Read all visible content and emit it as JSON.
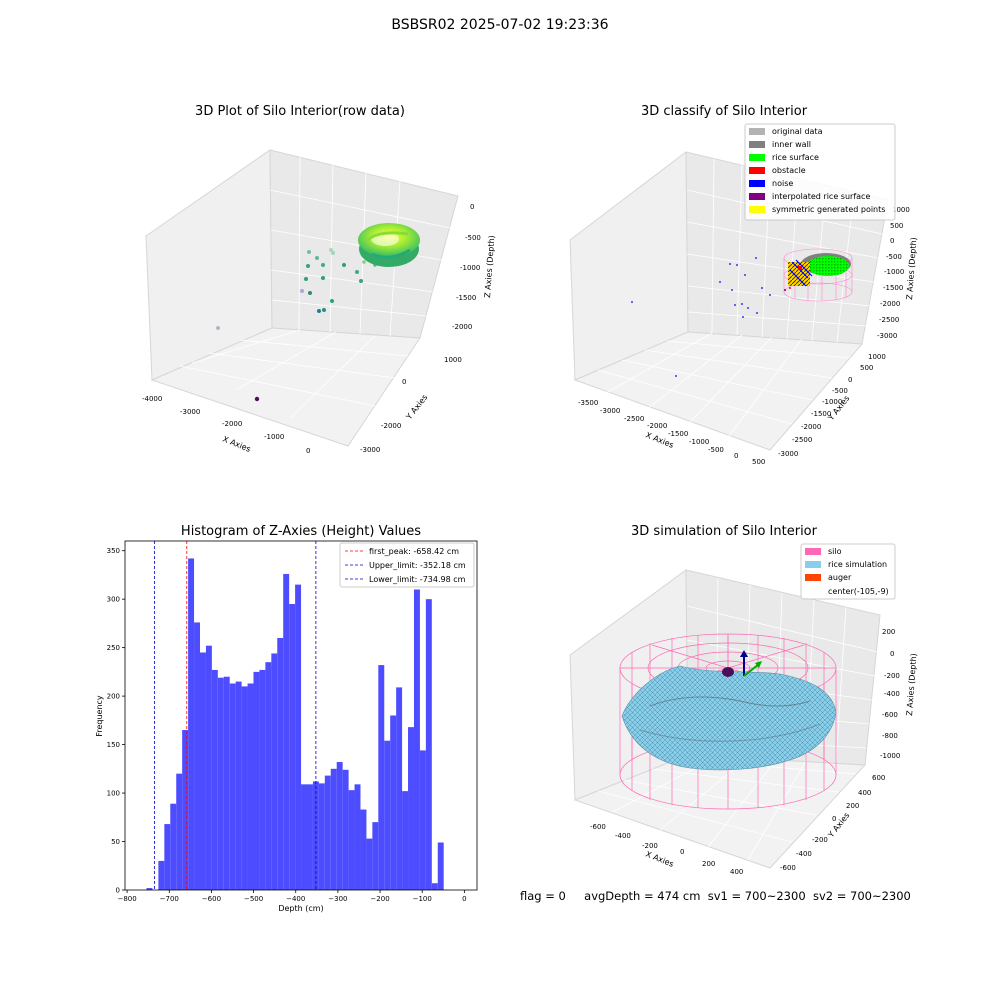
{
  "figure": {
    "suptitle": "BSBSR02 2025-07-02 19:23:36",
    "status": {
      "flag": "flag = 0",
      "avg_depth": "avgDepth = 474 cm",
      "sv1": "sv1 = 700~2300",
      "sv2": "sv2 = 700~2300"
    }
  },
  "colors": {
    "hist_bar": "#4d4dff",
    "first_peak_line": "#ff0000",
    "limit_lines": "#0000cc",
    "original_data": "#b3b3b3",
    "inner_wall": "#808080",
    "rice_surface": "#00ff00",
    "obstacle": "#ff0000",
    "noise": "#0000ff",
    "interpolated_rice_surface": "#800080",
    "symmetric_generated_points": "#ffff00",
    "silo": "#ff69b4",
    "rice_simulation": "#87ceeb",
    "auger": "#ff4500"
  },
  "chart_data": [
    {
      "type": "scatter",
      "subtype": "3d",
      "title": "3D Plot of Silo Interior(row data)",
      "xlabel": "X Axies",
      "ylabel": "Y Axies",
      "zlabel": "Z Axies (Depth)",
      "xticks": [
        "-4000",
        "-3000",
        "-2000",
        "-1000",
        "0"
      ],
      "yticks": [
        "-3000",
        "-2000",
        "0",
        "1000"
      ],
      "zticks": [
        "0",
        "-500",
        "-1000",
        "-1500",
        "-2000"
      ],
      "grid": true
    },
    {
      "type": "scatter",
      "subtype": "3d",
      "title": "3D classify of Silo Interior",
      "xlabel": "X Axies",
      "ylabel": "Y Axies",
      "zlabel": "Z Axies (Depth)",
      "xticks": [
        "-3500",
        "-3000",
        "-2500",
        "-2000",
        "-1500",
        "-1000",
        "-500",
        "0",
        "500"
      ],
      "yticks": [
        "-3000",
        "-2500",
        "-2000",
        "-1500",
        "-1000",
        "-500",
        "0",
        "500",
        "1000"
      ],
      "zticks": [
        "1000",
        "500",
        "0",
        "-500",
        "-1000",
        "-1500",
        "-2000",
        "-2500",
        "-3000"
      ],
      "zticks_note": "upper ticks partly hidden by legend",
      "legend": [
        "original data",
        "inner wall",
        "rice surface",
        "obstacle",
        "noise",
        "interpolated rice surface",
        "symmetric generated points"
      ],
      "legend_position": "top-right",
      "grid": true
    },
    {
      "type": "bar",
      "subtype": "histogram",
      "title": "Histogram of Z-Axies (Height) Values",
      "xlabel": "Depth (cm)",
      "ylabel": "Frequency",
      "xlim": [
        -805,
        30
      ],
      "ylim": [
        0,
        360
      ],
      "xticks": [
        -800,
        -700,
        -600,
        -500,
        -400,
        -300,
        -200,
        -100,
        0
      ],
      "yticks": [
        0,
        50,
        100,
        150,
        200,
        250,
        300,
        350
      ],
      "bin_width": 14.1,
      "bin_start": -754,
      "frequencies": [
        2,
        0,
        30,
        68,
        89,
        120,
        165,
        342,
        276,
        245,
        252,
        227,
        219,
        220,
        213,
        215,
        210,
        213,
        225,
        227,
        235,
        244,
        260,
        326,
        295,
        315,
        109,
        109,
        112,
        110,
        118,
        125,
        132,
        124,
        103,
        109,
        83,
        53,
        70,
        232,
        154,
        180,
        209,
        102,
        168,
        310,
        144,
        300,
        7,
        49
      ],
      "vlines": [
        {
          "label": "first_peak: -658.42 cm",
          "x": -658.42,
          "style": "red-dashed"
        },
        {
          "label": "Upper_limit: -352.18 cm",
          "x": -352.18,
          "style": "blue-dashed"
        },
        {
          "label": "Lower_limit: -734.98 cm",
          "x": -734.98,
          "style": "blue-dashed"
        }
      ],
      "legend_position": "top-right",
      "grid": false
    },
    {
      "type": "area",
      "subtype": "3d-surface",
      "title": "3D simulation of Silo Interior",
      "xlabel": "X Axies",
      "ylabel": "Y Axies",
      "zlabel": "Z Axies (Depth)",
      "xticks": [
        "-600",
        "-400",
        "-200",
        "0",
        "200",
        "400"
      ],
      "yticks": [
        "-600",
        "-400",
        "-200",
        "0",
        "200",
        "400",
        "600"
      ],
      "zticks": [
        "200",
        "0",
        "-200",
        "-400",
        "-600",
        "-800",
        "-1000"
      ],
      "legend": [
        "silo",
        "rice simulation",
        "auger",
        "center(-105,-9)"
      ],
      "legend_position": "top-right",
      "grid": true
    }
  ]
}
